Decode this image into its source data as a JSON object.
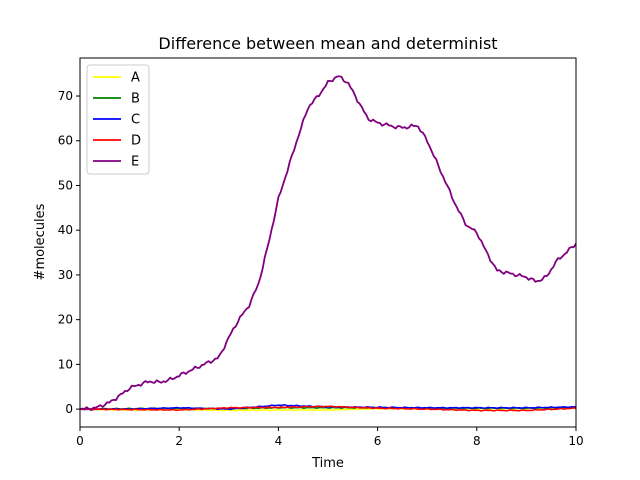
{
  "chart_data": {
    "type": "line",
    "title": "Difference between mean and determinist",
    "xlabel": "Time",
    "ylabel": "#molecules",
    "xlim": [
      0,
      10
    ],
    "ylim": [
      -4,
      78.5
    ],
    "xticks": [
      0,
      2,
      4,
      6,
      8,
      10
    ],
    "yticks": [
      0,
      10,
      20,
      30,
      40,
      50,
      60,
      70
    ],
    "grid": false,
    "legend": "top-left",
    "series": [
      {
        "name": "A",
        "color": "#ffff00",
        "x": [
          0,
          1,
          2,
          3,
          4,
          5,
          6,
          7,
          8,
          9,
          10
        ],
        "y": [
          0,
          -0.2,
          -0.1,
          -0.3,
          -0.2,
          -0.2,
          0.1,
          0.1,
          0.0,
          0.1,
          0.3
        ]
      },
      {
        "name": "B",
        "color": "#008000",
        "x": [
          0,
          1,
          2,
          3,
          4,
          5,
          6,
          7,
          8,
          9,
          10
        ],
        "y": [
          0,
          0.1,
          0.2,
          0.1,
          0.3,
          0.3,
          0.3,
          0.2,
          0.2,
          0.2,
          0.4
        ]
      },
      {
        "name": "C",
        "color": "#0000ff",
        "x": [
          0,
          1,
          2,
          3,
          4,
          5,
          6,
          7,
          8,
          9,
          10
        ],
        "y": [
          0,
          0.0,
          0.3,
          0.0,
          0.9,
          0.5,
          0.4,
          0.3,
          0.3,
          0.3,
          0.5
        ]
      },
      {
        "name": "D",
        "color": "#ff0000",
        "x": [
          0,
          1,
          2,
          3,
          4,
          5,
          6,
          7,
          8,
          9,
          10
        ],
        "y": [
          0,
          -0.1,
          -0.2,
          0.3,
          0.4,
          0.6,
          0.2,
          0.0,
          -0.3,
          -0.3,
          0.2
        ]
      },
      {
        "name": "E",
        "color": "#800080",
        "x": [
          0,
          0.3,
          0.6,
          0.8,
          1.0,
          1.2,
          1.4,
          1.6,
          1.8,
          2.0,
          2.2,
          2.4,
          2.6,
          2.8,
          3.0,
          3.2,
          3.4,
          3.6,
          3.8,
          4.0,
          4.2,
          4.4,
          4.6,
          4.8,
          5.0,
          5.2,
          5.4,
          5.6,
          5.8,
          6.0,
          6.2,
          6.4,
          6.6,
          6.8,
          7.0,
          7.2,
          7.4,
          7.6,
          7.8,
          8.0,
          8.2,
          8.4,
          8.6,
          8.8,
          9.0,
          9.2,
          9.4,
          9.6,
          9.8,
          10.0
        ],
        "y": [
          0,
          0.2,
          1.5,
          3,
          4.7,
          5.5,
          6.2,
          6.0,
          6.5,
          7.5,
          8.5,
          9.5,
          10.5,
          11.5,
          16,
          20,
          23,
          28,
          37,
          47,
          54,
          61,
          67.5,
          70,
          73,
          74.5,
          73,
          69,
          65,
          64,
          63.5,
          63,
          63,
          63.5,
          60,
          55,
          50,
          45,
          41,
          39.5,
          35,
          31,
          30.5,
          30,
          29.5,
          28.5,
          29.5,
          33,
          35,
          37
        ]
      }
    ]
  }
}
